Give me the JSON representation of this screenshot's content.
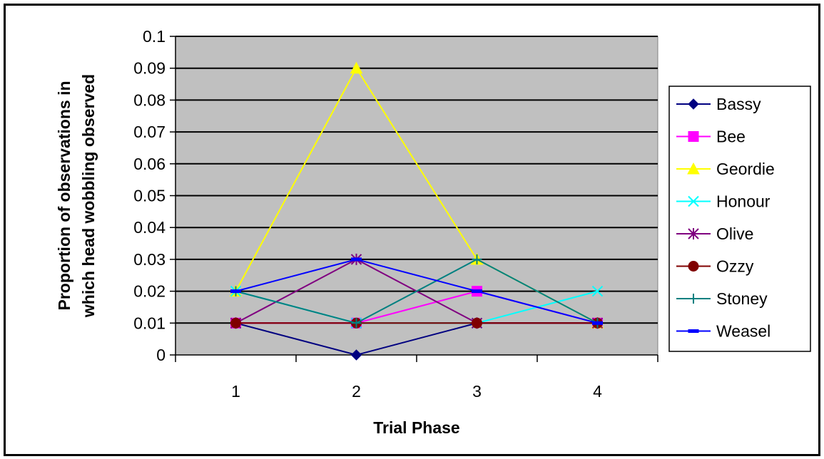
{
  "chart_data": {
    "type": "line",
    "title": "",
    "xlabel": "Trial Phase",
    "ylabel": "Proportion of observations in which head wobbling observed",
    "ylabel_lines": [
      "Proportion of observations in",
      "which head wobbling observed"
    ],
    "categories": [
      "1",
      "2",
      "3",
      "4"
    ],
    "ylim": [
      0,
      0.1
    ],
    "yticks": [
      "0",
      "0.01",
      "0.02",
      "0.03",
      "0.04",
      "0.05",
      "0.06",
      "0.07",
      "0.08",
      "0.09",
      "0.1"
    ],
    "grid": true,
    "plot_background": "#c0c0c0",
    "legend_position": "right",
    "series": [
      {
        "name": "Bassy",
        "values": [
          0.01,
          0.0,
          0.01,
          0.01
        ],
        "color": "#000080",
        "marker": "diamond"
      },
      {
        "name": "Bee",
        "values": [
          0.01,
          0.01,
          0.02,
          0.01
        ],
        "color": "#ff00ff",
        "marker": "square"
      },
      {
        "name": "Geordie",
        "values": [
          0.02,
          0.09,
          0.03,
          0.01
        ],
        "color": "#ffff00",
        "marker": "triangle"
      },
      {
        "name": "Honour",
        "values": [
          0.02,
          0.01,
          0.01,
          0.02
        ],
        "color": "#00ffff",
        "marker": "x"
      },
      {
        "name": "Olive",
        "values": [
          0.01,
          0.03,
          0.01,
          0.01
        ],
        "color": "#800080",
        "marker": "star"
      },
      {
        "name": "Ozzy",
        "values": [
          0.01,
          0.01,
          0.01,
          0.01
        ],
        "color": "#800000",
        "marker": "circle"
      },
      {
        "name": "Stoney",
        "values": [
          0.02,
          0.01,
          0.03,
          0.01
        ],
        "color": "#008080",
        "marker": "plus"
      },
      {
        "name": "Weasel",
        "values": [
          0.02,
          0.03,
          0.02,
          0.01
        ],
        "color": "#0000ff",
        "marker": "dash"
      }
    ]
  }
}
